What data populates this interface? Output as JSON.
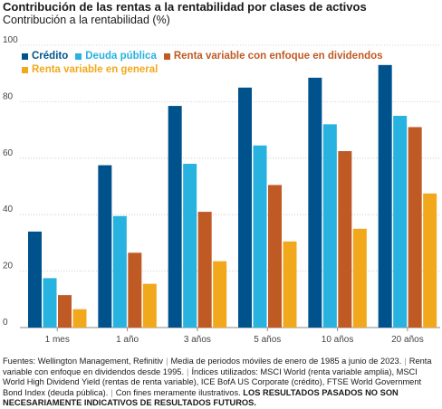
{
  "chart_data": {
    "type": "bar",
    "title": "Contribución de las rentas a la rentabilidad por clases de activos",
    "ylabel": "Contribución a la rentabilidad (%)",
    "categories": [
      "1 mes",
      "1 año",
      "3 años",
      "5 años",
      "10 años",
      "20 años"
    ],
    "ylim": [
      0,
      100
    ],
    "yticks": [
      0,
      20,
      40,
      60,
      80,
      100
    ],
    "grid": true,
    "legend_position": "top-left",
    "series": [
      {
        "name": "Crédito",
        "color": "#00528c",
        "values": [
          34,
          57.5,
          78.5,
          85,
          88.5,
          93
        ]
      },
      {
        "name": "Deuda pública",
        "color": "#27b2e0",
        "values": [
          17.5,
          39.5,
          58,
          64.5,
          72,
          75
        ]
      },
      {
        "name": "Renta variable con enfoque en dividendos",
        "color": "#c05a24",
        "values": [
          11.5,
          26.5,
          41,
          50.5,
          62.5,
          71
        ]
      },
      {
        "name": "Renta variable en general",
        "color": "#f2a81d",
        "values": [
          6.5,
          15.5,
          23.5,
          30.5,
          35,
          47.5
        ]
      }
    ]
  },
  "footnote": {
    "part1": "Fuentes: Wellington Management, Refinitiv",
    "part2": "Media de periodos móviles de enero de 1985 a junio de 2023.",
    "part3": "Renta variable con enfoque en dividendos desde 1995.",
    "part4": "Índices utilizados: MSCI World (renta variable amplia), MSCI World High Dividend Yield (rentas de renta variable), ICE BofA US Corporate (crédito), FTSE World Government Bond Index (deuda pública).",
    "part5": "Con fines meramente ilustrativos.",
    "bold": "LOS RESULTADOS PASADOS NO SON NECESARIAMENTE INDICATIVOS DE RESULTADOS FUTUROS."
  }
}
